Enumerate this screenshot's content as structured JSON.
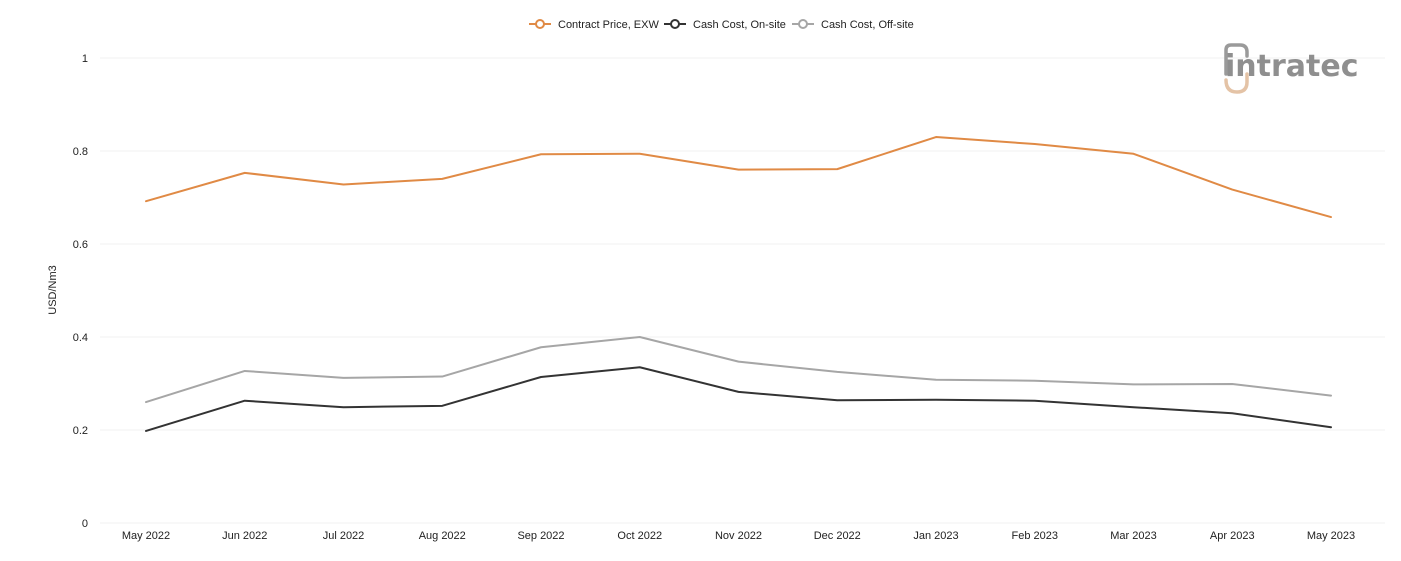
{
  "logo": {
    "text": "intratec"
  },
  "chart_data": {
    "type": "line",
    "title": "",
    "xlabel": "",
    "ylabel": "USD/Nm3",
    "ylim": [
      0,
      1
    ],
    "yticks": [
      "0",
      "0.2",
      "0.4",
      "0.6",
      "0.8",
      "1"
    ],
    "grid": true,
    "legend_position": "top-center",
    "categories": [
      "May 2022",
      "Jun 2022",
      "Jul 2022",
      "Aug 2022",
      "Sep 2022",
      "Oct 2022",
      "Nov 2022",
      "Dec 2022",
      "Jan 2023",
      "Feb 2023",
      "Mar 2023",
      "Apr 2023",
      "May 2023"
    ],
    "series": [
      {
        "name": "Contract Price, EXW",
        "color": "#e08a45",
        "values": [
          0.692,
          0.753,
          0.728,
          0.74,
          0.793,
          0.794,
          0.76,
          0.761,
          0.83,
          0.815,
          0.794,
          0.717,
          0.658
        ]
      },
      {
        "name": "Cash Cost, On-site",
        "color": "#333333",
        "values": [
          0.198,
          0.263,
          0.249,
          0.252,
          0.314,
          0.335,
          0.282,
          0.264,
          0.265,
          0.263,
          0.249,
          0.236,
          0.206
        ]
      },
      {
        "name": "Cash Cost, Off-site",
        "color": "#a6a6a6",
        "values": [
          0.26,
          0.327,
          0.312,
          0.315,
          0.378,
          0.4,
          0.347,
          0.325,
          0.308,
          0.306,
          0.298,
          0.299,
          0.274
        ]
      }
    ]
  }
}
